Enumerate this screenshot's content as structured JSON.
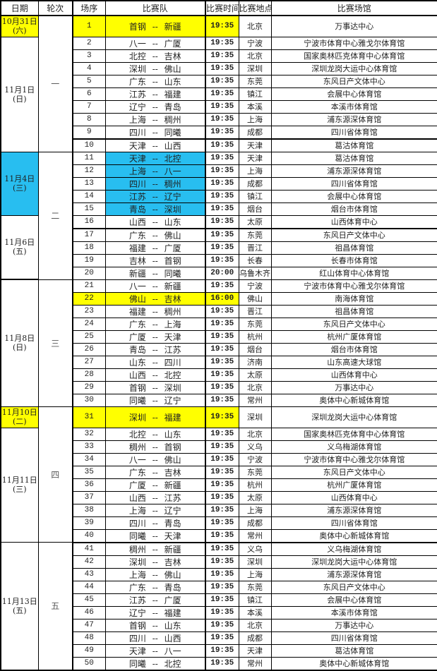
{
  "columns": [
    "日期",
    "轮次",
    "场序",
    "比赛队",
    "比赛时间",
    "比赛地点",
    "比赛场馆"
  ],
  "colors": {
    "highlight_yellow": "#ffff00",
    "highlight_blue": "#28bef0",
    "grid": "#000000"
  },
  "date_groups": [
    {
      "date": "10月31日",
      "week": "(六)",
      "start": 1,
      "span": 1,
      "bg": "yellow"
    },
    {
      "date": "11月1日",
      "week": "(日)",
      "start": 2,
      "span": 9,
      "bg": ""
    },
    {
      "date": "11月4日",
      "week": "(三)",
      "start": 11,
      "span": 5,
      "bg": "blue"
    },
    {
      "date": "11月6日",
      "week": "(五)",
      "start": 16,
      "span": 5,
      "bg": ""
    },
    {
      "date": "11月8日",
      "week": "(日)",
      "start": 21,
      "span": 10,
      "bg": ""
    },
    {
      "date": "11月10日",
      "week": "(二)",
      "start": 31,
      "span": 1,
      "bg": "yellow"
    },
    {
      "date": "11月11日",
      "week": "(三)",
      "start": 32,
      "span": 9,
      "bg": ""
    },
    {
      "date": "11月13日",
      "week": "(五)",
      "start": 41,
      "span": 10,
      "bg": ""
    }
  ],
  "round_groups": [
    {
      "label": "一",
      "start": 1,
      "span": 10
    },
    {
      "label": "二",
      "start": 11,
      "span": 10
    },
    {
      "label": "三",
      "start": 21,
      "span": 10
    },
    {
      "label": "四",
      "start": 31,
      "span": 10
    },
    {
      "label": "五",
      "start": 41,
      "span": 10
    }
  ],
  "thick_after": [
    9,
    16,
    40
  ],
  "rows": [
    {
      "no": "1",
      "teams": "首钢 -- 新疆",
      "time": "19:35",
      "city": "北京",
      "venue": "万事达中心",
      "hl": "yellow",
      "tall": true
    },
    {
      "no": "2",
      "teams": "八一 -- 广厦",
      "time": "19:35",
      "city": "宁波",
      "venue": "宁波市体育中心雅戈尔体育馆",
      "hl": "",
      "tall": false
    },
    {
      "no": "3",
      "teams": "北控 -- 吉林",
      "time": "19:35",
      "city": "北京",
      "venue": "国家奥林匹克体育中心体育馆",
      "hl": "",
      "tall": false
    },
    {
      "no": "4",
      "teams": "深圳 -- 佛山",
      "time": "19:35",
      "city": "深圳",
      "venue": "深圳龙岗大运中心体育馆",
      "hl": "",
      "tall": false
    },
    {
      "no": "5",
      "teams": "广东 -- 山东",
      "time": "19:35",
      "city": "东莞",
      "venue": "东风日产文体中心",
      "hl": "",
      "tall": false
    },
    {
      "no": "6",
      "teams": "江苏 -- 福建",
      "time": "19:35",
      "city": "镇江",
      "venue": "会展中心体育馆",
      "hl": "",
      "tall": false
    },
    {
      "no": "7",
      "teams": "辽宁 -- 青岛",
      "time": "19:35",
      "city": "本溪",
      "venue": "本溪市体育馆",
      "hl": "",
      "tall": false
    },
    {
      "no": "8",
      "teams": "上海 -- 稠州",
      "time": "19:35",
      "city": "上海",
      "venue": "浦东源深体育馆",
      "hl": "",
      "tall": false
    },
    {
      "no": "9",
      "teams": "四川 -- 同曦",
      "time": "19:35",
      "city": "成都",
      "venue": "四川省体育馆",
      "hl": "",
      "tall": false
    },
    {
      "no": "10",
      "teams": "天津 -- 山西",
      "time": "19:35",
      "city": "天津",
      "venue": "葛沽体育馆",
      "hl": "",
      "tall": false
    },
    {
      "no": "11",
      "teams": "天津 -- 北控",
      "time": "19:35",
      "city": "天津",
      "venue": "葛沽体育馆",
      "hl": "blue",
      "tall": false
    },
    {
      "no": "12",
      "teams": "上海 -- 八一",
      "time": "19:35",
      "city": "上海",
      "venue": "浦东源深体育馆",
      "hl": "blue",
      "tall": false
    },
    {
      "no": "13",
      "teams": "四川 -- 稠州",
      "time": "19:35",
      "city": "成都",
      "venue": "四川省体育馆",
      "hl": "blue",
      "tall": false
    },
    {
      "no": "14",
      "teams": "江苏 -- 辽宁",
      "time": "19:35",
      "city": "镇江",
      "venue": "会展中心体育馆",
      "hl": "blue",
      "tall": false
    },
    {
      "no": "15",
      "teams": "青岛 -- 深圳",
      "time": "19:35",
      "city": "烟台",
      "venue": "烟台市体育馆",
      "hl": "blue",
      "tall": false
    },
    {
      "no": "16",
      "teams": "山西 -- 山东",
      "time": "19:35",
      "city": "太原",
      "venue": "山西体育中心",
      "hl": "",
      "tall": false
    },
    {
      "no": "17",
      "teams": "广东 -- 佛山",
      "time": "19:35",
      "city": "东莞",
      "venue": "东风日产文体中心",
      "hl": "",
      "tall": false
    },
    {
      "no": "18",
      "teams": "福建 -- 广厦",
      "time": "19:35",
      "city": "晋江",
      "venue": "祖昌体育馆",
      "hl": "",
      "tall": false
    },
    {
      "no": "19",
      "teams": "吉林 -- 首钢",
      "time": "19:35",
      "city": "长春",
      "venue": "长春市体育馆",
      "hl": "",
      "tall": false
    },
    {
      "no": "20",
      "teams": "新疆 -- 同曦",
      "time": "20:00",
      "city": "乌鲁木齐",
      "venue": "红山体育中心体育馆",
      "hl": "",
      "tall": false
    },
    {
      "no": "21",
      "teams": "八一 -- 新疆",
      "time": "19:35",
      "city": "宁波",
      "venue": "宁波市体育中心雅戈尔体育馆",
      "hl": "",
      "tall": false
    },
    {
      "no": "22",
      "teams": "佛山 -- 吉林",
      "time": "16:00",
      "city": "佛山",
      "venue": "南海体育馆",
      "hl": "yellow",
      "tall": false
    },
    {
      "no": "23",
      "teams": "福建 -- 稠州",
      "time": "19:35",
      "city": "晋江",
      "venue": "祖昌体育馆",
      "hl": "",
      "tall": false
    },
    {
      "no": "24",
      "teams": "广东 -- 上海",
      "time": "19:35",
      "city": "东莞",
      "venue": "东风日产文体中心",
      "hl": "",
      "tall": false
    },
    {
      "no": "25",
      "teams": "广厦 -- 天津",
      "time": "19:35",
      "city": "杭州",
      "venue": "杭州广厦体育馆",
      "hl": "",
      "tall": false
    },
    {
      "no": "26",
      "teams": "青岛 -- 江苏",
      "time": "19:35",
      "city": "烟台",
      "venue": "烟台市体育馆",
      "hl": "",
      "tall": false
    },
    {
      "no": "27",
      "teams": "山东 -- 四川",
      "time": "19:35",
      "city": "济南",
      "venue": "山东高速大球馆",
      "hl": "",
      "tall": false
    },
    {
      "no": "28",
      "teams": "山西 -- 北控",
      "time": "19:35",
      "city": "太原",
      "venue": "山西体育中心",
      "hl": "",
      "tall": false
    },
    {
      "no": "29",
      "teams": "首钢 -- 深圳",
      "time": "19:35",
      "city": "北京",
      "venue": "万事达中心",
      "hl": "",
      "tall": false
    },
    {
      "no": "30",
      "teams": "同曦 -- 辽宁",
      "time": "19:35",
      "city": "常州",
      "venue": "奥体中心新城体育馆",
      "hl": "",
      "tall": false
    },
    {
      "no": "31",
      "teams": "深圳 -- 福建",
      "time": "19:35",
      "city": "深圳",
      "venue": "深圳龙岗大运中心体育馆",
      "hl": "yellow",
      "tall": true
    },
    {
      "no": "32",
      "teams": "北控 -- 山东",
      "time": "19:35",
      "city": "北京",
      "venue": "国家奥林匹克体育中心体育馆",
      "hl": "",
      "tall": false
    },
    {
      "no": "33",
      "teams": "稠州 -- 首钢",
      "time": "19:35",
      "city": "义乌",
      "venue": "义乌梅湖体育馆",
      "hl": "",
      "tall": false
    },
    {
      "no": "34",
      "teams": "八一 -- 佛山",
      "time": "19:35",
      "city": "宁波",
      "venue": "宁波市体育中心雅戈尔体育馆",
      "hl": "",
      "tall": false
    },
    {
      "no": "35",
      "teams": "广东 -- 吉林",
      "time": "19:35",
      "city": "东莞",
      "venue": "东风日产文体中心",
      "hl": "",
      "tall": false
    },
    {
      "no": "36",
      "teams": "广厦 -- 新疆",
      "time": "19:35",
      "city": "杭州",
      "venue": "杭州广厦体育馆",
      "hl": "",
      "tall": false
    },
    {
      "no": "37",
      "teams": "山西 -- 江苏",
      "time": "19:35",
      "city": "太原",
      "venue": "山西体育中心",
      "hl": "",
      "tall": false
    },
    {
      "no": "38",
      "teams": "上海 -- 辽宁",
      "time": "19:35",
      "city": "上海",
      "venue": "浦东源深体育馆",
      "hl": "",
      "tall": false
    },
    {
      "no": "39",
      "teams": "四川 -- 青岛",
      "time": "19:35",
      "city": "成都",
      "venue": "四川省体育馆",
      "hl": "",
      "tall": false
    },
    {
      "no": "40",
      "teams": "同曦 -- 天津",
      "time": "19:35",
      "city": "常州",
      "venue": "奥体中心新城体育馆",
      "hl": "",
      "tall": false
    },
    {
      "no": "41",
      "teams": "稠州 -- 新疆",
      "time": "19:35",
      "city": "义乌",
      "venue": "义乌梅湖体育馆",
      "hl": "",
      "tall": false
    },
    {
      "no": "42",
      "teams": "深圳 -- 吉林",
      "time": "19:35",
      "city": "深圳",
      "venue": "深圳龙岗大运中心体育馆",
      "hl": "",
      "tall": false
    },
    {
      "no": "43",
      "teams": "上海 -- 佛山",
      "time": "19:35",
      "city": "上海",
      "venue": "浦东源深体育馆",
      "hl": "",
      "tall": false
    },
    {
      "no": "44",
      "teams": "广东 -- 青岛",
      "time": "19:35",
      "city": "东莞",
      "venue": "东风日产文体中心",
      "hl": "",
      "tall": false
    },
    {
      "no": "45",
      "teams": "江苏 -- 广厦",
      "time": "19:35",
      "city": "镇江",
      "venue": "会展中心体育馆",
      "hl": "",
      "tall": false
    },
    {
      "no": "46",
      "teams": "辽宁 -- 福建",
      "time": "19:35",
      "city": "本溪",
      "venue": "本溪市体育馆",
      "hl": "",
      "tall": false
    },
    {
      "no": "47",
      "teams": "首钢 -- 山东",
      "time": "19:35",
      "city": "北京",
      "venue": "万事达中心",
      "hl": "",
      "tall": false
    },
    {
      "no": "48",
      "teams": "四川 -- 山西",
      "time": "19:35",
      "city": "成都",
      "venue": "四川省体育馆",
      "hl": "",
      "tall": false
    },
    {
      "no": "49",
      "teams": "天津 -- 八一",
      "time": "19:35",
      "city": "天津",
      "venue": "葛沽体育馆",
      "hl": "",
      "tall": false
    },
    {
      "no": "50",
      "teams": "同曦 -- 北控",
      "time": "19:35",
      "city": "常州",
      "venue": "奥体中心新城体育馆",
      "hl": "",
      "tall": false
    }
  ]
}
